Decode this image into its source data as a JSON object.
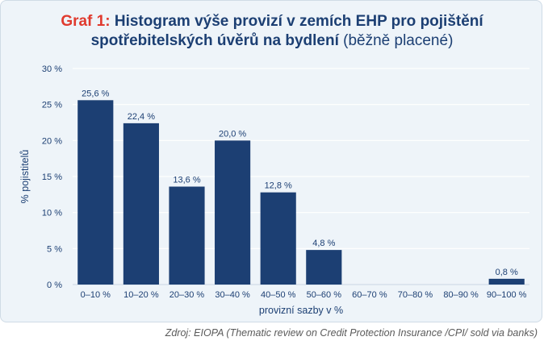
{
  "title": {
    "prefix": "Graf 1:",
    "line1": "Histogram výše provizí v zemích EHP pro pojištění",
    "line2": "spotřebitelských úvěrů na bydlení",
    "suffix": "(běžně placené)"
  },
  "source": "Zdroj: EIOPA (Thematic review on Credit Protection Insurance /CPI/ sold via banks)",
  "colors": {
    "bar": "#1c3f73",
    "title_prefix": "#e03a2e",
    "text": "#1c3f73",
    "grid": "#ffffff"
  },
  "chart_data": {
    "type": "bar",
    "categories": [
      "0–10 %",
      "10–20 %",
      "20–30 %",
      "30–40 %",
      "40–50 %",
      "50–60 %",
      "60–70 %",
      "70–80 %",
      "80–90 %",
      "90–100 %"
    ],
    "values": [
      25.6,
      22.4,
      13.6,
      20.0,
      12.8,
      4.8,
      0,
      0,
      0,
      0.8
    ],
    "data_labels": [
      "25,6 %",
      "22,4 %",
      "13,6 %",
      "20,0 %",
      "12,8 %",
      "4,8 %",
      "",
      "",
      "",
      "0,8 %"
    ],
    "ylim": [
      0,
      30
    ],
    "yticks": [
      0,
      5,
      10,
      15,
      20,
      25,
      30
    ],
    "ytick_labels": [
      "0 %",
      "5 %",
      "10 %",
      "15 %",
      "20 %",
      "25 %",
      "30 %"
    ],
    "xlabel": "provizní sazby v %",
    "ylabel": "% pojistitelů",
    "grid": true,
    "legend": false
  }
}
